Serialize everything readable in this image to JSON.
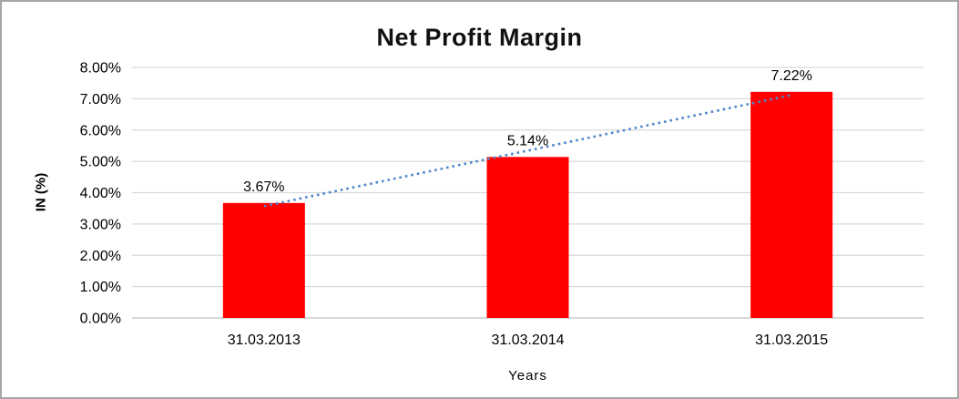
{
  "frame": {
    "border_color": "#A6A6A6",
    "background": "#FFFFFF"
  },
  "chart_data": {
    "type": "bar",
    "title": "Net Profit Margin",
    "categories": [
      "31.03.2013",
      "31.03.2014",
      "31.03.2015"
    ],
    "values": [
      3.67,
      5.14,
      7.22
    ],
    "data_labels": [
      "3.67%",
      "5.14%",
      "7.22%"
    ],
    "xlabel": "Years",
    "ylabel": "IN (%)",
    "ylim": [
      0,
      8
    ],
    "ytick_step": 1,
    "ytick_labels": [
      "0.00%",
      "1.00%",
      "2.00%",
      "3.00%",
      "4.00%",
      "5.00%",
      "6.00%",
      "7.00%",
      "8.00%"
    ],
    "grid": true,
    "legend": false,
    "bar_color": "#FF0000",
    "gridline_color": "#D9D9D9",
    "baseline_color": "#BFBFBF",
    "text_color": "#000000",
    "trendline": {
      "type": "linear",
      "style": "dotted",
      "color": "#4E86C8"
    }
  }
}
